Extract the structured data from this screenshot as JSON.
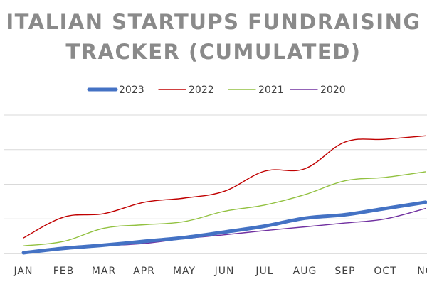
{
  "chart_data": {
    "type": "line",
    "title_lines": [
      "ITALIAN STARTUPS FUNDRAISING",
      "TRACKER (CUMULATED)"
    ],
    "categories": [
      "JAN",
      "FEB",
      "MAR",
      "APR",
      "MAY",
      "JUN",
      "JUL",
      "AUG",
      "SEP",
      "OCT",
      "NO"
    ],
    "y_axis_labels_shown": false,
    "ylim": [
      0,
      4
    ],
    "grid": true,
    "legend_position": "top",
    "series": [
      {
        "name": "2023",
        "color": "#4472c4",
        "emphasis": "thick",
        "values": [
          0.02,
          0.15,
          0.24,
          0.35,
          0.46,
          0.62,
          0.79,
          1.02,
          1.12,
          1.3,
          1.48
        ]
      },
      {
        "name": "2022",
        "color": "#c00000",
        "emphasis": "normal",
        "values": [
          0.45,
          1.05,
          1.15,
          1.48,
          1.6,
          1.8,
          2.38,
          2.45,
          3.22,
          3.3,
          3.4
        ]
      },
      {
        "name": "2021",
        "color": "#92c140",
        "emphasis": "normal",
        "values": [
          0.22,
          0.35,
          0.73,
          0.83,
          0.92,
          1.22,
          1.4,
          1.7,
          2.1,
          2.2,
          2.36
        ]
      },
      {
        "name": "2020",
        "color": "#7030a0",
        "emphasis": "normal",
        "values": [
          0.02,
          0.13,
          0.22,
          0.29,
          0.43,
          0.54,
          0.66,
          0.77,
          0.88,
          1.0,
          1.3
        ]
      }
    ]
  }
}
